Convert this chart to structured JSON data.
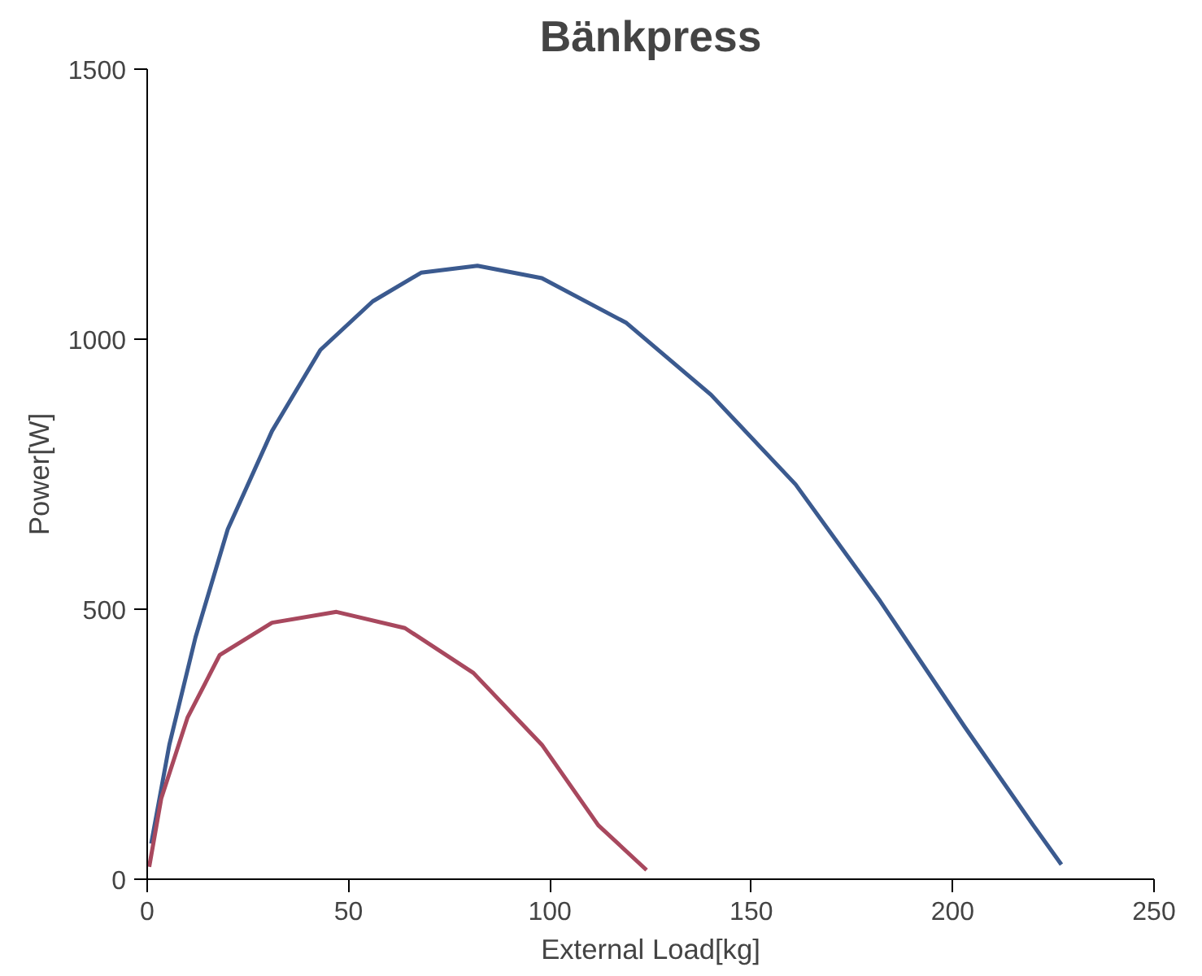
{
  "chart_data": {
    "type": "line",
    "title": "Bänkpress",
    "xlabel": "External Load[kg]",
    "ylabel": "Power[W]",
    "xlim": [
      0,
      250
    ],
    "xticks": [
      0,
      50,
      100,
      150,
      200,
      250
    ],
    "ylim": [
      0,
      1500
    ],
    "yticks": [
      0,
      500,
      1000,
      1500
    ],
    "grid": false,
    "marker": "none",
    "line_style": "solid",
    "series": [
      {
        "color": "#3b5a8f",
        "x": [
          1,
          5.5,
          12,
          20,
          31,
          43,
          56,
          68,
          82,
          98,
          119,
          140,
          161,
          182,
          203,
          220,
          227
        ],
        "values": [
          66,
          249,
          448,
          648,
          830,
          980,
          1070,
          1123,
          1136,
          1113,
          1030,
          897,
          731,
          515,
          282,
          100,
          27
        ]
      },
      {
        "color": "#a8485e",
        "x": [
          0.5,
          3.5,
          10,
          18,
          31,
          47,
          64,
          81,
          98,
          112,
          124
        ],
        "values": [
          23,
          150,
          299,
          415,
          475,
          495,
          465,
          382,
          249,
          100,
          17
        ]
      }
    ]
  }
}
